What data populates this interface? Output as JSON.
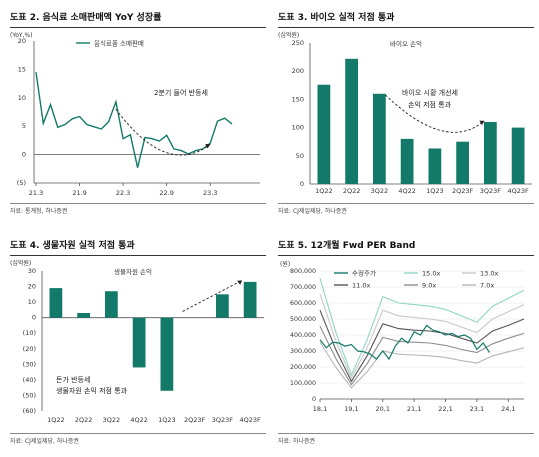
{
  "colors": {
    "teal": "#137a69",
    "ink": "#333333",
    "grid": "#888888"
  },
  "panels": [
    {
      "title": "도표 2. 음식료 소매판매액 YoY 성장률",
      "source": "자료: 통계청, 하나증권"
    },
    {
      "title": "도표 3. 바이오 실적 저점 통과",
      "source": "자료: CJ제일제당, 하나증권"
    },
    {
      "title": "도표 4. 생물자원 실적 저점 통과",
      "source": "자료: CJ제일제당, 하나증권"
    },
    {
      "title": "도표 5. 12개월 Fwd PER Band",
      "source": "자료: 하나증권"
    }
  ],
  "chart_data": [
    {
      "type": "line",
      "unit": "(YoY,%)",
      "ylim": [
        -5,
        20
      ],
      "yticks": [
        "20",
        "15",
        "10",
        "5",
        "0",
        "(5)"
      ],
      "xticks": [
        "21.3",
        "21.9",
        "22.3",
        "22.9",
        "23.3"
      ],
      "series": [
        {
          "name": "음식료품 소매판매",
          "values": [
            14.5,
            5.5,
            8.8,
            4.8,
            5.3,
            6.3,
            6.7,
            5.3,
            4.9,
            4.5,
            5.8,
            9.3,
            2.8,
            3.5,
            -2.3,
            3.0,
            2.8,
            2.4,
            3.4,
            1.0,
            0.7,
            0.1,
            0.7,
            1.0,
            2.0,
            5.9,
            6.4,
            5.4
          ]
        }
      ],
      "annotations": [
        "2분기 들어 반등세"
      ]
    },
    {
      "type": "bar",
      "unit": "(십억원)",
      "ylim": [
        0,
        250
      ],
      "yticks": [
        "250",
        "200",
        "150",
        "100",
        "50",
        "0"
      ],
      "series_label": "바이오 손익",
      "categories": [
        "1Q22",
        "2Q22",
        "3Q22",
        "4Q22",
        "1Q23",
        "2Q23F",
        "3Q23F",
        "4Q23F"
      ],
      "values": [
        176,
        222,
        160,
        80,
        63,
        75,
        110,
        100
      ],
      "annotations": [
        "바이오 시황 개선세",
        "손익 저점 통과"
      ]
    },
    {
      "type": "bar",
      "unit": "(십억원)",
      "ylim": [
        -60,
        30
      ],
      "yticks": [
        "30",
        "20",
        "10",
        "0",
        "(10)",
        "(20)",
        "(30)",
        "(40)",
        "(50)",
        "(60)"
      ],
      "series_label": "생물자원 손익",
      "categories": [
        "1Q22",
        "2Q22",
        "3Q22",
        "4Q22",
        "1Q23",
        "2Q23F",
        "3Q23F",
        "4Q23F"
      ],
      "values": [
        19,
        3,
        17,
        -32,
        -47,
        0,
        15,
        23
      ],
      "annotations": [
        "돈가 반등세",
        "생물자원 손익 저점 통과"
      ]
    },
    {
      "type": "line",
      "unit": "(원)",
      "ylim": [
        0,
        800000
      ],
      "yticks": [
        "800,000",
        "700,000",
        "600,000",
        "500,000",
        "400,000",
        "300,000",
        "200,000",
        "100,000",
        "0"
      ],
      "xticks": [
        "18,1",
        "19,1",
        "20,1",
        "21,1",
        "22,1",
        "23,1",
        "24,1"
      ],
      "x": [
        2018.0,
        2018.5,
        2019.0,
        2019.5,
        2020.0,
        2020.5,
        2021.0,
        2021.5,
        2022.0,
        2022.5,
        2023.0,
        2023.5,
        2024.0,
        2024.5
      ],
      "series": [
        {
          "name": "15.0x",
          "values": [
            755000,
            420000,
            150000,
            370000,
            640000,
            600000,
            590000,
            580000,
            560000,
            520000,
            480000,
            580000,
            630000,
            680000
          ]
        },
        {
          "name": "13.0x",
          "values": [
            655000,
            365000,
            130000,
            320000,
            555000,
            520000,
            510000,
            500000,
            485000,
            450000,
            415000,
            500000,
            545000,
            590000
          ]
        },
        {
          "name": "11.0x",
          "values": [
            555000,
            310000,
            110000,
            270000,
            470000,
            440000,
            430000,
            425000,
            410000,
            380000,
            350000,
            425000,
            460000,
            500000
          ]
        },
        {
          "name": "9.0x",
          "values": [
            455000,
            255000,
            90000,
            220000,
            385000,
            360000,
            355000,
            350000,
            335000,
            310000,
            290000,
            345000,
            380000,
            410000
          ]
        },
        {
          "name": "7.0x",
          "values": [
            355000,
            200000,
            70000,
            170000,
            300000,
            280000,
            275000,
            270000,
            260000,
            240000,
            225000,
            270000,
            295000,
            320000
          ]
        }
      ],
      "price": {
        "name": "수정주가",
        "x": [
          2018.0,
          2018.2,
          2018.4,
          2018.6,
          2018.8,
          2019.0,
          2019.2,
          2019.4,
          2019.6,
          2019.8,
          2020.0,
          2020.2,
          2020.4,
          2020.6,
          2020.8,
          2021.0,
          2021.2,
          2021.4,
          2021.6,
          2021.8,
          2022.0,
          2022.2,
          2022.4,
          2022.6,
          2022.8,
          2023.0,
          2023.2,
          2023.4
        ],
        "values": [
          370000,
          320000,
          355000,
          350000,
          330000,
          340000,
          300000,
          295000,
          280000,
          250000,
          300000,
          250000,
          330000,
          380000,
          350000,
          420000,
          400000,
          460000,
          430000,
          420000,
          400000,
          410000,
          390000,
          400000,
          380000,
          310000,
          350000,
          290000
        ]
      }
    }
  ]
}
